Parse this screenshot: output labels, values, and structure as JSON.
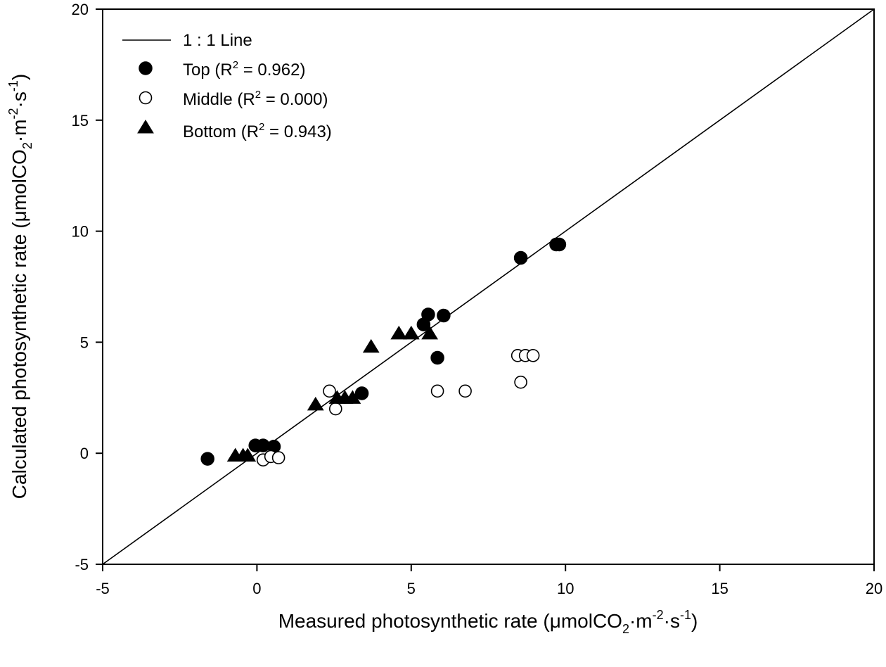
{
  "chart_data": {
    "type": "scatter",
    "title": "",
    "xlabel": {
      "prefix": "Measured photosynthetic rate (μmolCO",
      "sub": "2",
      "mid": "·m",
      "sup1": "-2",
      "mid2": "·s",
      "sup2": "-1",
      "suffix": ")"
    },
    "ylabel": {
      "prefix": "Calculated photosynthetic rate (μmolCO",
      "sub": "2",
      "mid": "·m",
      "sup1": "-2",
      "mid2": "·s",
      "sup2": "-1",
      "suffix": ")"
    },
    "xlim": [
      -5,
      20
    ],
    "ylim": [
      -5,
      20
    ],
    "xticks": [
      -5,
      0,
      5,
      10,
      15,
      20
    ],
    "yticks": [
      -5,
      0,
      5,
      10,
      15,
      20
    ],
    "grid": false,
    "legend_position": "top-left",
    "reference_line": {
      "name": "1 : 1 Line",
      "slope": 1,
      "intercept": 0
    },
    "series": [
      {
        "name": "Top",
        "r2": "0.962",
        "marker": "filled-circle",
        "points": [
          [
            -1.6,
            -0.25
          ],
          [
            -0.05,
            0.35
          ],
          [
            0.2,
            0.35
          ],
          [
            0.55,
            0.3
          ],
          [
            3.4,
            2.7
          ],
          [
            5.4,
            5.8
          ],
          [
            5.55,
            6.25
          ],
          [
            5.85,
            4.3
          ],
          [
            6.05,
            6.2
          ],
          [
            8.55,
            8.8
          ],
          [
            9.7,
            9.4
          ],
          [
            9.8,
            9.4
          ]
        ]
      },
      {
        "name": "Middle",
        "r2": "0.000",
        "marker": "open-circle",
        "points": [
          [
            0.2,
            -0.3
          ],
          [
            0.45,
            -0.15
          ],
          [
            0.7,
            -0.2
          ],
          [
            2.35,
            2.8
          ],
          [
            2.55,
            2.0
          ],
          [
            5.85,
            2.8
          ],
          [
            6.75,
            2.8
          ],
          [
            8.45,
            4.4
          ],
          [
            8.55,
            3.2
          ],
          [
            8.7,
            4.4
          ],
          [
            8.95,
            4.4
          ]
        ]
      },
      {
        "name": "Bottom",
        "r2": "0.943",
        "marker": "filled-triangle",
        "points": [
          [
            -0.7,
            -0.1
          ],
          [
            -0.45,
            -0.1
          ],
          [
            -0.3,
            -0.1
          ],
          [
            1.9,
            2.2
          ],
          [
            2.6,
            2.5
          ],
          [
            2.85,
            2.5
          ],
          [
            3.1,
            2.5
          ],
          [
            3.7,
            4.8
          ],
          [
            4.6,
            5.4
          ],
          [
            5.0,
            5.4
          ],
          [
            5.6,
            5.4
          ]
        ]
      }
    ]
  }
}
